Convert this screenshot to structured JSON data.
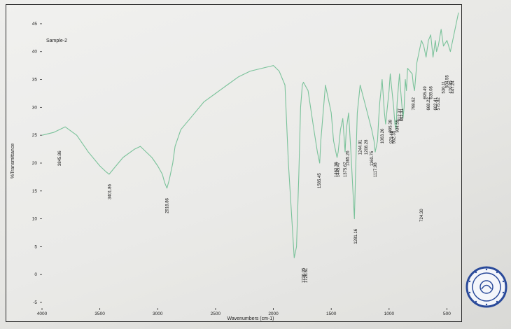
{
  "chart_data": {
    "type": "line",
    "title": "Sample-2",
    "xlabel": "Wavenumbers (cm-1)",
    "ylabel": "%Transmittance",
    "xlim": [
      4000,
      400
    ],
    "ylim": [
      -6,
      47
    ],
    "x_ticks": [
      "4000",
      "3500",
      "3000",
      "2500",
      "2000",
      "1500",
      "1000",
      "500"
    ],
    "x_tick_values": [
      4000,
      3500,
      3000,
      2500,
      2000,
      1500,
      1000,
      500
    ],
    "y_ticks": [
      "-5",
      "0",
      "5",
      "10",
      "15",
      "20",
      "25",
      "30",
      "35",
      "40",
      "45"
    ],
    "y_tick_values": [
      -5,
      0,
      5,
      10,
      15,
      20,
      25,
      30,
      35,
      40,
      45
    ],
    "line_color": "#7ac29a",
    "series": [
      {
        "x": [
          4000,
          3900,
          3800,
          3700,
          3600,
          3500,
          3450,
          3420,
          3380,
          3300,
          3200,
          3150,
          3100,
          3050,
          3000,
          2960,
          2940,
          2920,
          2900,
          2870,
          2850,
          2800,
          2700,
          2600,
          2500,
          2400,
          2300,
          2200,
          2100,
          2000,
          1950,
          1900,
          1870,
          1820,
          1800,
          1780,
          1765,
          1750,
          1740,
          1700,
          1650,
          1620,
          1600,
          1590,
          1550,
          1530,
          1500,
          1480,
          1460,
          1450,
          1440,
          1420,
          1400,
          1380,
          1370,
          1350,
          1330,
          1310,
          1300,
          1290,
          1275,
          1250,
          1200,
          1150,
          1130,
          1120,
          1100,
          1090,
          1080,
          1060,
          1040,
          1030,
          1000,
          990,
          980,
          960,
          950,
          940,
          930,
          910,
          900,
          880,
          870,
          860,
          850,
          840,
          800,
          790,
          780,
          760,
          740,
          720,
          700,
          680,
          660,
          640,
          620,
          600,
          590,
          575,
          550,
          530,
          500,
          470,
          450,
          420,
          400
        ],
        "y": [
          25,
          25.5,
          26.5,
          25,
          22,
          19.5,
          18.5,
          18,
          19,
          21,
          22.5,
          23,
          22,
          21,
          19.5,
          18,
          16.5,
          15.5,
          17,
          20,
          23,
          26,
          28.5,
          31,
          32.5,
          34,
          35.5,
          36.5,
          37,
          37.5,
          36.5,
          34,
          20,
          3,
          5,
          18,
          30,
          34,
          34.5,
          33,
          26,
          22,
          20,
          24,
          34,
          32,
          29,
          24,
          22,
          21,
          22,
          26,
          28,
          22,
          26,
          29,
          22,
          14,
          10,
          18,
          29,
          34,
          30,
          26,
          24,
          22,
          24,
          28,
          31,
          35,
          29,
          27,
          33,
          36,
          34,
          30,
          27,
          26,
          31,
          36,
          33,
          28,
          30,
          35,
          33,
          37,
          36,
          34,
          33,
          38,
          40,
          42,
          41,
          39,
          42,
          43,
          39,
          42,
          40,
          41,
          44,
          41,
          42,
          40,
          42,
          45,
          47
        ]
      }
    ],
    "peak_labels": [
      {
        "x": 3850,
        "y": 24,
        "text": "3845.86"
      },
      {
        "x": 3415,
        "y": 18,
        "text": "3401.86"
      },
      {
        "x": 2920,
        "y": 15.5,
        "text": "2918.86"
      },
      {
        "x": 1740,
        "y": 3,
        "text": "1736.05"
      },
      {
        "x": 1720,
        "y": 3,
        "text": "1726.61"
      },
      {
        "x": 1605,
        "y": 20,
        "text": "1585.45"
      },
      {
        "x": 1460,
        "y": 22,
        "text": "1462.36"
      },
      {
        "x": 1440,
        "y": 22,
        "text": "1445.47"
      },
      {
        "x": 1380,
        "y": 22,
        "text": "1375.67"
      },
      {
        "x": 1360,
        "y": 24,
        "text": "1365.26"
      },
      {
        "x": 1290,
        "y": 10,
        "text": "1281.16"
      },
      {
        "x": 1250,
        "y": 26,
        "text": "1244.81"
      },
      {
        "x": 1200,
        "y": 26,
        "text": "1208.28"
      },
      {
        "x": 1150,
        "y": 24,
        "text": "1160.75"
      },
      {
        "x": 1120,
        "y": 22,
        "text": "1117.98"
      },
      {
        "x": 1060,
        "y": 28,
        "text": "1063.26"
      },
      {
        "x": 990,
        "y": 30,
        "text": "995.38"
      },
      {
        "x": 980,
        "y": 28,
        "text": "979.46"
      },
      {
        "x": 960,
        "y": 28,
        "text": "962.35"
      },
      {
        "x": 930,
        "y": 30,
        "text": "934.55"
      },
      {
        "x": 910,
        "y": 32,
        "text": "912.37"
      },
      {
        "x": 890,
        "y": 32,
        "text": "892.31"
      },
      {
        "x": 790,
        "y": 34,
        "text": "798.62"
      },
      {
        "x": 720,
        "y": 14,
        "text": "724.30"
      },
      {
        "x": 690,
        "y": 36,
        "text": "695.49"
      },
      {
        "x": 660,
        "y": 34,
        "text": "668.22"
      },
      {
        "x": 640,
        "y": 36,
        "text": "639.08"
      },
      {
        "x": 600,
        "y": 34,
        "text": "602.41"
      },
      {
        "x": 575,
        "y": 34,
        "text": "575.82"
      },
      {
        "x": 530,
        "y": 37,
        "text": "530.11"
      },
      {
        "x": 500,
        "y": 38,
        "text": "504.55"
      },
      {
        "x": 470,
        "y": 37,
        "text": "470.85"
      },
      {
        "x": 450,
        "y": 37,
        "text": "447.24"
      }
    ]
  }
}
